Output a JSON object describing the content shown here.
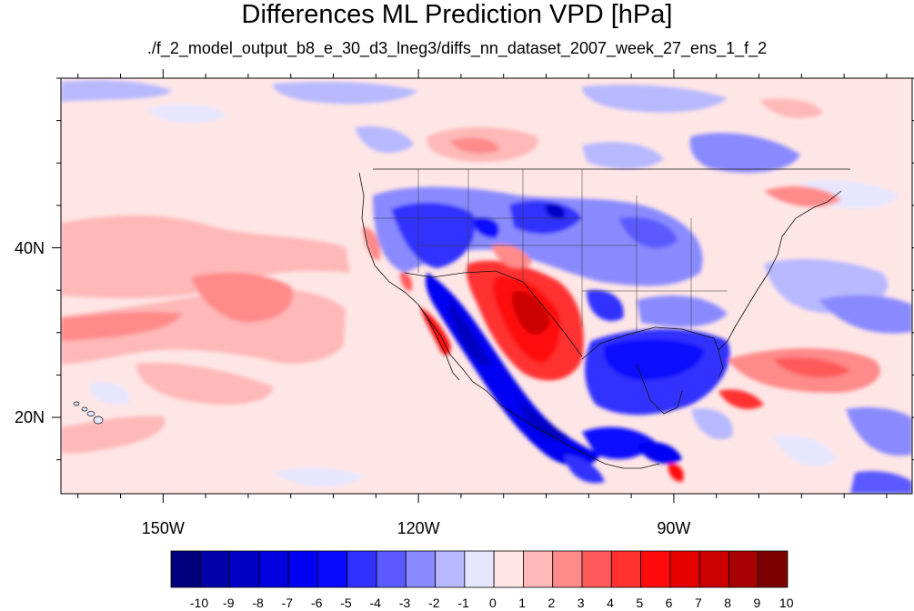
{
  "title": "Differences ML Prediction VPD [hPa]",
  "subtitle": "./f_2_model_output_b8_e_30_d3_lneg3/diffs_nn_dataset_2007_week_27_ens_1_f_2",
  "map": {
    "lon_range": [
      -162,
      -62
    ],
    "lat_range": [
      11,
      60
    ],
    "lon_ticks": [
      {
        "value": -150,
        "label": "150W"
      },
      {
        "value": -120,
        "label": "120W"
      },
      {
        "value": -90,
        "label": "90W"
      }
    ],
    "lat_ticks": [
      {
        "value": 40,
        "label": "40N"
      },
      {
        "value": 20,
        "label": "20N"
      }
    ]
  },
  "colorbar": {
    "labels": [
      "-10",
      "-9",
      "-8",
      "-7",
      "-6",
      "-5",
      "-4",
      "-3",
      "-2",
      "-1",
      "0",
      "1",
      "2",
      "3",
      "4",
      "5",
      "6",
      "7",
      "8",
      "9",
      "10"
    ],
    "colors": [
      "#00007d",
      "#0000a8",
      "#0000c4",
      "#0000de",
      "#0000f2",
      "#0a0aff",
      "#3030ff",
      "#5a5aff",
      "#8a8aff",
      "#b8b8ff",
      "#e6e6ff",
      "#ffe6e6",
      "#ffb8b8",
      "#ff8a8a",
      "#ff5a5a",
      "#ff3030",
      "#ff0a0a",
      "#e60000",
      "#cc0000",
      "#a80000",
      "#7d0000"
    ]
  }
}
